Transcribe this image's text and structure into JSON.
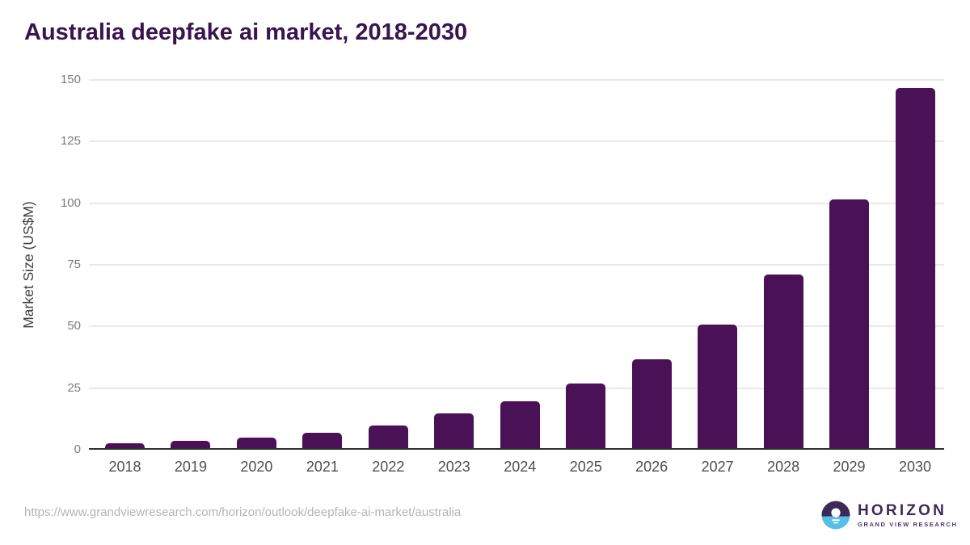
{
  "title": "Australia deepfake ai market, 2018-2030",
  "chart_data": {
    "type": "bar",
    "title": "Australia deepfake ai market, 2018-2030",
    "categories": [
      "2018",
      "2019",
      "2020",
      "2021",
      "2022",
      "2023",
      "2024",
      "2025",
      "2026",
      "2027",
      "2028",
      "2029",
      "2030"
    ],
    "values": [
      2.3,
      3.4,
      4.7,
      6.6,
      9.5,
      14.3,
      19.4,
      26.5,
      36.4,
      50.4,
      70.7,
      101.1,
      146.4
    ],
    "xlabel": "",
    "ylabel": "Market Size (US$M)",
    "ylim": [
      0,
      150
    ],
    "yticks": [
      0,
      25,
      50,
      75,
      100,
      125,
      150
    ],
    "grid": true,
    "legend": "none",
    "bar_color": "#4A1157"
  },
  "colors": {
    "title_text": "#38154F",
    "bar_fill": "#4A1157",
    "gridline": "#e9e9ec",
    "axis_line": "#2e2e33",
    "tick_label": "#7c7c7c",
    "logo_purple": "#3B2A58",
    "logo_blue": "#56BFE8"
  },
  "footer": {
    "source_url": "https://www.grandviewresearch.com/horizon/outlook/deepfake-ai-market/australia",
    "logo": {
      "brand": "HORIZON",
      "sub_brand": "GRAND VIEW RESEARCH"
    }
  }
}
